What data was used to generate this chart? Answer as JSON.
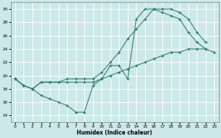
{
  "xlabel": "Humidex (Indice chaleur)",
  "bg_color": "#cce8e8",
  "grid_color": "#ffffff",
  "line_color": "#2d7a6a",
  "xlim": [
    -0.5,
    23.5
  ],
  "ylim": [
    13,
    31
  ],
  "xticks": [
    0,
    1,
    2,
    3,
    4,
    5,
    6,
    7,
    8,
    9,
    10,
    11,
    12,
    13,
    14,
    15,
    16,
    17,
    18,
    19,
    20,
    21,
    22,
    23
  ],
  "yticks": [
    14,
    16,
    18,
    20,
    22,
    24,
    26,
    28,
    30
  ],
  "line1_x": [
    0,
    1,
    2,
    3,
    4,
    5,
    6,
    7,
    8,
    9,
    10,
    11,
    12,
    13,
    14,
    15,
    16,
    17,
    18,
    19,
    20,
    21,
    22
  ],
  "line1_y": [
    19.5,
    18.5,
    18.0,
    17.0,
    16.5,
    16.0,
    15.5,
    14.5,
    14.5,
    18.5,
    19.5,
    21.5,
    21.5,
    19.5,
    28.5,
    30.0,
    30.0,
    29.5,
    29.0,
    28.5,
    26.5,
    25.0,
    24.0
  ],
  "line2_x": [
    0,
    1,
    2,
    3,
    4,
    5,
    6,
    7,
    8,
    9,
    10,
    11,
    12,
    13,
    14,
    15,
    16,
    17,
    18,
    19,
    20,
    21,
    22,
    23
  ],
  "line2_y": [
    19.5,
    18.5,
    18.0,
    19.0,
    19.0,
    19.0,
    19.0,
    19.0,
    19.0,
    19.0,
    19.5,
    20.0,
    20.5,
    21.0,
    21.5,
    22.0,
    22.5,
    23.0,
    23.5,
    23.5,
    24.0,
    24.0,
    24.0,
    23.5
  ],
  "line3_x": [
    0,
    1,
    2,
    3,
    4,
    5,
    6,
    7,
    8,
    9,
    10,
    11,
    12,
    13,
    14,
    15,
    16,
    17,
    18,
    19,
    20,
    21,
    22
  ],
  "line3_y": [
    19.5,
    18.5,
    18.0,
    19.0,
    19.0,
    19.0,
    19.5,
    19.5,
    19.5,
    19.5,
    20.5,
    22.0,
    23.5,
    25.5,
    27.0,
    28.5,
    30.0,
    30.0,
    30.0,
    29.5,
    28.5,
    26.5,
    25.0
  ]
}
